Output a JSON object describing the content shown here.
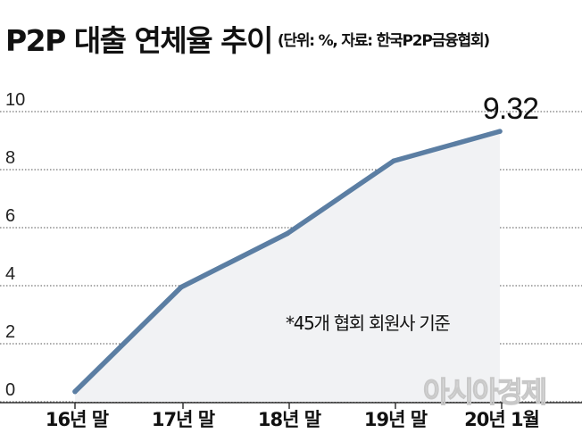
{
  "header": {
    "title": "P2P 대출 연체율 추이",
    "subtitle": "(단위: %, 자료: 한국P2P금융협회)"
  },
  "chart_data": {
    "type": "area",
    "title": "P2P 대출 연체율 추이",
    "unit_note": "(단위: %, 자료: 한국P2P금융협회)",
    "categories": [
      "16년 말",
      "17년 말",
      "18년 말",
      "19년 말",
      "20년 1월"
    ],
    "values": [
      0.35,
      3.95,
      5.8,
      8.3,
      9.32
    ],
    "yticks": [
      0,
      2,
      4,
      6,
      8,
      10
    ],
    "ylim": [
      0,
      10
    ],
    "grid": "horizontal",
    "data_labels": [
      {
        "index": 4,
        "text": "9.32"
      }
    ],
    "annotations": [
      "*45개 협회 회원사 기준"
    ],
    "colors": {
      "line": "#5b7ea3",
      "fill": "#f1f2f4",
      "grid": "#555555"
    }
  },
  "watermark": "아시아경제"
}
